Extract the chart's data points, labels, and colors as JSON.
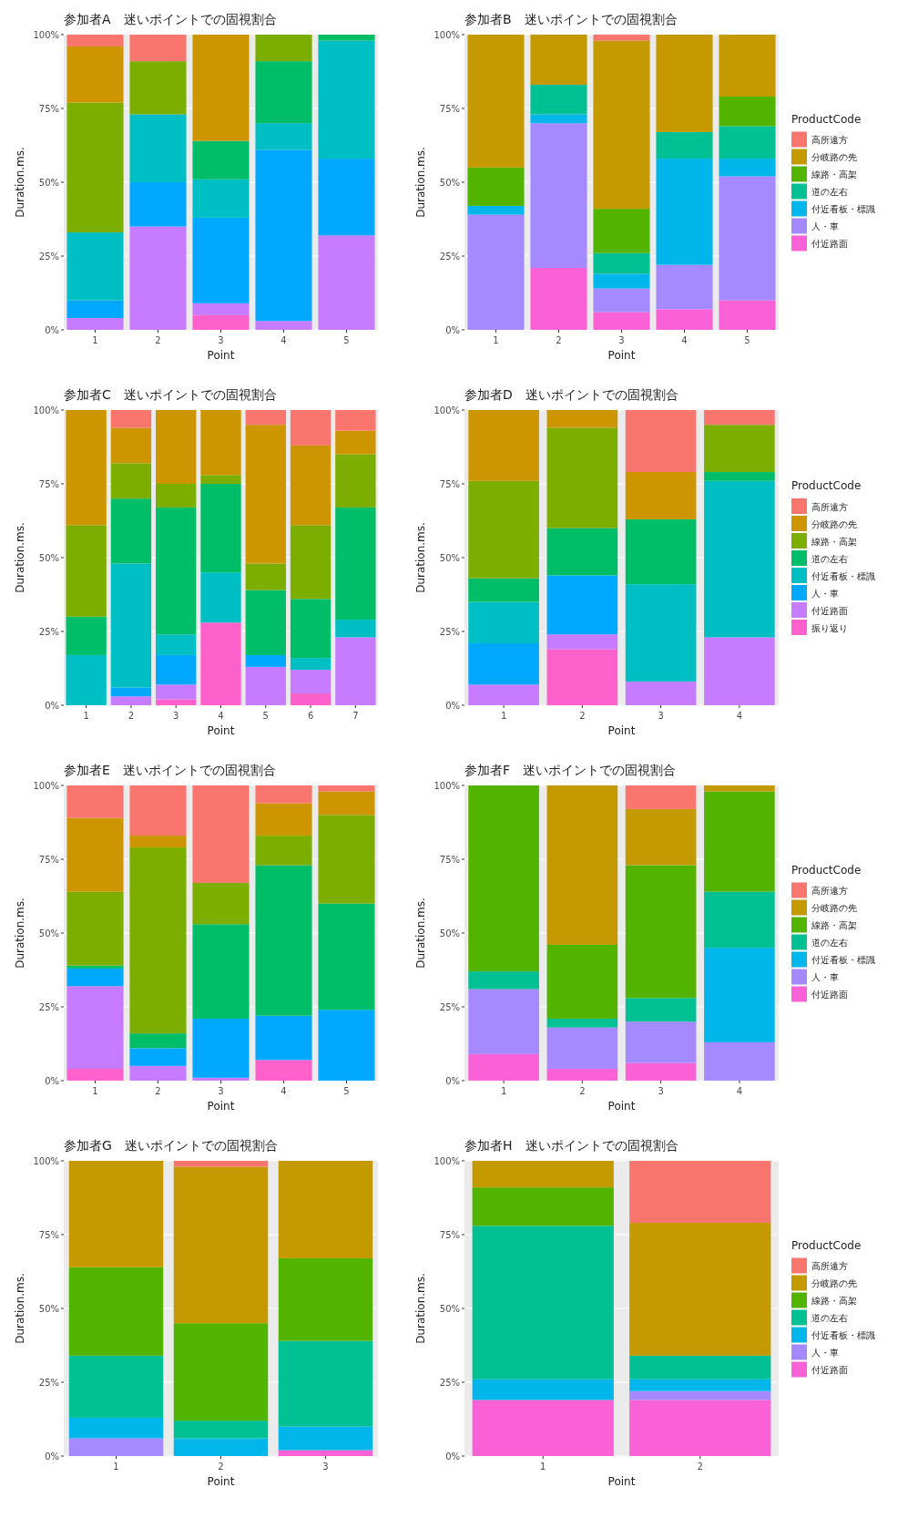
{
  "chart_data": [
    {
      "type": "bar",
      "title": "参加者A　迷いポイントでの固視割合",
      "xlabel": "Point",
      "ylabel": "Duration.ms.",
      "categories": [
        "1",
        "2",
        "3",
        "4",
        "5"
      ],
      "stacked": true,
      "grid": "y",
      "legend": false,
      "ylim": [
        0,
        100
      ],
      "yticks": [
        {
          "value": 0,
          "label": "0%"
        },
        {
          "value": 25,
          "label": "25%"
        },
        {
          "value": 50,
          "label": "50%"
        },
        {
          "value": 75,
          "label": "75%"
        },
        {
          "value": 100,
          "label": "100%"
        }
      ],
      "series": [
        {
          "color": "#ff61cc",
          "values": [
            0,
            0,
            5,
            0,
            0
          ]
        },
        {
          "color": "#c77cff",
          "values": [
            4,
            35,
            4,
            3,
            32
          ]
        },
        {
          "color": "#00a9ff",
          "values": [
            6,
            15,
            29,
            58,
            26
          ]
        },
        {
          "color": "#00bfc4",
          "values": [
            23,
            23,
            13,
            9,
            40
          ]
        },
        {
          "color": "#00be67",
          "values": [
            0,
            0,
            13,
            21,
            2
          ]
        },
        {
          "color": "#7cae00",
          "values": [
            44,
            18,
            0,
            9,
            0
          ]
        },
        {
          "color": "#cd9600",
          "values": [
            19,
            0,
            36,
            0,
            0
          ]
        },
        {
          "color": "#f8766d",
          "values": [
            4,
            9,
            0,
            0,
            0
          ]
        }
      ]
    },
    {
      "type": "bar",
      "title": "参加者B　迷いポイントでの固視割合",
      "xlabel": "Point",
      "ylabel": "Duration.ms.",
      "categories": [
        "1",
        "2",
        "3",
        "4",
        "5"
      ],
      "stacked": true,
      "grid": "y",
      "legend": "right",
      "legend_title": "ProductCode",
      "ylim": [
        0,
        100
      ],
      "yticks": [
        {
          "value": 0,
          "label": "0%"
        },
        {
          "value": 25,
          "label": "25%"
        },
        {
          "value": 50,
          "label": "50%"
        },
        {
          "value": 75,
          "label": "75%"
        },
        {
          "value": 100,
          "label": "100%"
        }
      ],
      "series": [
        {
          "name": "付近路面",
          "color": "#fb61d7",
          "values": [
            0,
            21,
            6,
            7,
            10
          ]
        },
        {
          "name": "人・車",
          "color": "#a58aff",
          "values": [
            39,
            49,
            8,
            15,
            42
          ]
        },
        {
          "name": "付近看板・標識",
          "color": "#00b6eb",
          "values": [
            3,
            3,
            5,
            36,
            6
          ]
        },
        {
          "name": "道の左右",
          "color": "#00c094",
          "values": [
            0,
            10,
            7,
            9,
            11
          ]
        },
        {
          "name": "線路・高架",
          "color": "#53b400",
          "values": [
            13,
            0,
            15,
            0,
            10
          ]
        },
        {
          "name": "分岐路の先",
          "color": "#c49a00",
          "values": [
            45,
            17,
            57,
            33,
            21
          ]
        },
        {
          "name": "高所遠方",
          "color": "#f8766d",
          "values": [
            0,
            0,
            2,
            0,
            0
          ]
        }
      ]
    },
    {
      "type": "bar",
      "title": "参加者C　迷いポイントでの固視割合",
      "xlabel": "Point",
      "ylabel": "Duration.ms.",
      "categories": [
        "1",
        "2",
        "3",
        "4",
        "5",
        "6",
        "7"
      ],
      "stacked": true,
      "grid": "y",
      "legend": false,
      "ylim": [
        0,
        100
      ],
      "yticks": [
        {
          "value": 0,
          "label": "0%"
        },
        {
          "value": 25,
          "label": "25%"
        },
        {
          "value": 50,
          "label": "50%"
        },
        {
          "value": 75,
          "label": "75%"
        },
        {
          "value": 100,
          "label": "100%"
        }
      ],
      "series": [
        {
          "color": "#ff61cc",
          "values": [
            0,
            0,
            2,
            28,
            0,
            4,
            0
          ]
        },
        {
          "color": "#c77cff",
          "values": [
            0,
            3,
            5,
            0,
            13,
            8,
            23
          ]
        },
        {
          "color": "#00a9ff",
          "values": [
            0,
            3,
            10,
            0,
            4,
            0,
            0
          ]
        },
        {
          "color": "#00bfc4",
          "values": [
            17,
            42,
            7,
            17,
            0,
            4,
            6
          ]
        },
        {
          "color": "#00be67",
          "values": [
            13,
            22,
            43,
            30,
            22,
            20,
            38
          ]
        },
        {
          "color": "#7cae00",
          "values": [
            31,
            12,
            8,
            3,
            9,
            25,
            18
          ]
        },
        {
          "color": "#cd9600",
          "values": [
            39,
            12,
            25,
            22,
            47,
            27,
            8
          ]
        },
        {
          "color": "#f8766d",
          "values": [
            0,
            6,
            0,
            0,
            5,
            12,
            7
          ]
        }
      ]
    },
    {
      "type": "bar",
      "title": "参加者D　迷いポイントでの固視割合",
      "xlabel": "Point",
      "ylabel": "Duration.ms.",
      "categories": [
        "1",
        "2",
        "3",
        "4"
      ],
      "stacked": true,
      "grid": "y",
      "legend": "right",
      "legend_title": "ProductCode",
      "ylim": [
        0,
        100
      ],
      "yticks": [
        {
          "value": 0,
          "label": "0%"
        },
        {
          "value": 25,
          "label": "25%"
        },
        {
          "value": 50,
          "label": "50%"
        },
        {
          "value": 75,
          "label": "75%"
        },
        {
          "value": 100,
          "label": "100%"
        }
      ],
      "series": [
        {
          "name": "振り返り",
          "color": "#ff61cc",
          "values": [
            0,
            19,
            0,
            0
          ]
        },
        {
          "name": "付近路面",
          "color": "#c77cff",
          "values": [
            7,
            5,
            8,
            23
          ]
        },
        {
          "name": "人・車",
          "color": "#00a9ff",
          "values": [
            14,
            20,
            0,
            0
          ]
        },
        {
          "name": "付近看板・標識",
          "color": "#00bfc4",
          "values": [
            14,
            0,
            33,
            53
          ]
        },
        {
          "name": "道の左右",
          "color": "#00be67",
          "values": [
            8,
            16,
            22,
            3
          ]
        },
        {
          "name": "線路・高架",
          "color": "#7cae00",
          "values": [
            33,
            34,
            0,
            16
          ]
        },
        {
          "name": "分岐路の先",
          "color": "#cd9600",
          "values": [
            24,
            6,
            16,
            0
          ]
        },
        {
          "name": "高所遠方",
          "color": "#f8766d",
          "values": [
            0,
            0,
            21,
            5
          ]
        }
      ]
    },
    {
      "type": "bar",
      "title": "参加者E　迷いポイントでの固視割合",
      "xlabel": "Point",
      "ylabel": "Duration.ms.",
      "categories": [
        "1",
        "2",
        "3",
        "4",
        "5"
      ],
      "stacked": true,
      "grid": "y",
      "legend": false,
      "ylim": [
        0,
        100
      ],
      "yticks": [
        {
          "value": 0,
          "label": "0%"
        },
        {
          "value": 25,
          "label": "25%"
        },
        {
          "value": 50,
          "label": "50%"
        },
        {
          "value": 75,
          "label": "75%"
        },
        {
          "value": 100,
          "label": "100%"
        }
      ],
      "series": [
        {
          "color": "#ff61cc",
          "values": [
            4,
            0,
            0,
            7,
            0
          ]
        },
        {
          "color": "#c77cff",
          "values": [
            28,
            5,
            1,
            0,
            0
          ]
        },
        {
          "color": "#00a9ff",
          "values": [
            6,
            6,
            20,
            15,
            24
          ]
        },
        {
          "color": "#00be67",
          "values": [
            1,
            5,
            32,
            51,
            36
          ]
        },
        {
          "color": "#7cae00",
          "values": [
            25,
            63,
            14,
            10,
            30
          ]
        },
        {
          "color": "#cd9600",
          "values": [
            25,
            4,
            0,
            11,
            8
          ]
        },
        {
          "color": "#f8766d",
          "values": [
            11,
            17,
            33,
            6,
            2
          ]
        }
      ]
    },
    {
      "type": "bar",
      "title": "参加者F　迷いポイントでの固視割合",
      "xlabel": "Point",
      "ylabel": "Duration.ms.",
      "categories": [
        "1",
        "2",
        "3",
        "4"
      ],
      "stacked": true,
      "grid": "y",
      "legend": "right",
      "legend_title": "ProductCode",
      "ylim": [
        0,
        100
      ],
      "yticks": [
        {
          "value": 0,
          "label": "0%"
        },
        {
          "value": 25,
          "label": "25%"
        },
        {
          "value": 50,
          "label": "50%"
        },
        {
          "value": 75,
          "label": "75%"
        },
        {
          "value": 100,
          "label": "100%"
        }
      ],
      "series": [
        {
          "name": "付近路面",
          "color": "#fb61d7",
          "values": [
            9,
            4,
            6,
            0
          ]
        },
        {
          "name": "人・車",
          "color": "#a58aff",
          "values": [
            22,
            14,
            14,
            13
          ]
        },
        {
          "name": "付近看板・標識",
          "color": "#00b6eb",
          "values": [
            0,
            0,
            0,
            32
          ]
        },
        {
          "name": "道の左右",
          "color": "#00c094",
          "values": [
            6,
            3,
            8,
            19
          ]
        },
        {
          "name": "線路・高架",
          "color": "#53b400",
          "values": [
            63,
            25,
            45,
            34
          ]
        },
        {
          "name": "分岐路の先",
          "color": "#c49a00",
          "values": [
            0,
            54,
            19,
            2
          ]
        },
        {
          "name": "高所遠方",
          "color": "#f8766d",
          "values": [
            0,
            0,
            8,
            0
          ]
        }
      ]
    },
    {
      "type": "bar",
      "title": "参加者G　迷いポイントでの固視割合",
      "xlabel": "Point",
      "ylabel": "Duration.ms.",
      "categories": [
        "1",
        "2",
        "3"
      ],
      "stacked": true,
      "grid": "y",
      "legend": false,
      "ylim": [
        0,
        100
      ],
      "yticks": [
        {
          "value": 0,
          "label": "0%"
        },
        {
          "value": 25,
          "label": "25%"
        },
        {
          "value": 50,
          "label": "50%"
        },
        {
          "value": 75,
          "label": "75%"
        },
        {
          "value": 100,
          "label": "100%"
        }
      ],
      "series": [
        {
          "color": "#fb61d7",
          "values": [
            0,
            0,
            2
          ]
        },
        {
          "color": "#a58aff",
          "values": [
            6,
            0,
            0
          ]
        },
        {
          "color": "#00b6eb",
          "values": [
            7,
            6,
            8
          ]
        },
        {
          "color": "#00c094",
          "values": [
            21,
            6,
            29
          ]
        },
        {
          "color": "#53b400",
          "values": [
            30,
            33,
            28
          ]
        },
        {
          "color": "#c49a00",
          "values": [
            36,
            53,
            33
          ]
        },
        {
          "color": "#f8766d",
          "values": [
            0,
            2,
            0
          ]
        }
      ]
    },
    {
      "type": "bar",
      "title": "参加者H　迷いポイントでの固視割合",
      "xlabel": "Point",
      "ylabel": "Duration.ms.",
      "categories": [
        "1",
        "2"
      ],
      "stacked": true,
      "grid": "y",
      "legend": "right",
      "legend_title": "ProductCode",
      "ylim": [
        0,
        100
      ],
      "yticks": [
        {
          "value": 0,
          "label": "0%"
        },
        {
          "value": 25,
          "label": "25%"
        },
        {
          "value": 50,
          "label": "50%"
        },
        {
          "value": 75,
          "label": "75%"
        },
        {
          "value": 100,
          "label": "100%"
        }
      ],
      "series": [
        {
          "name": "付近路面",
          "color": "#fb61d7",
          "values": [
            19,
            19
          ]
        },
        {
          "name": "人・車",
          "color": "#a58aff",
          "values": [
            0,
            3
          ]
        },
        {
          "name": "付近看板・標識",
          "color": "#00b6eb",
          "values": [
            7,
            4
          ]
        },
        {
          "name": "道の左右",
          "color": "#00c094",
          "values": [
            52,
            8
          ]
        },
        {
          "name": "線路・高架",
          "color": "#53b400",
          "values": [
            13,
            0
          ]
        },
        {
          "name": "分岐路の先",
          "color": "#c49a00",
          "values": [
            9,
            45
          ]
        },
        {
          "name": "高所遠方",
          "color": "#f8766d",
          "values": [
            0,
            21
          ]
        }
      ]
    }
  ]
}
